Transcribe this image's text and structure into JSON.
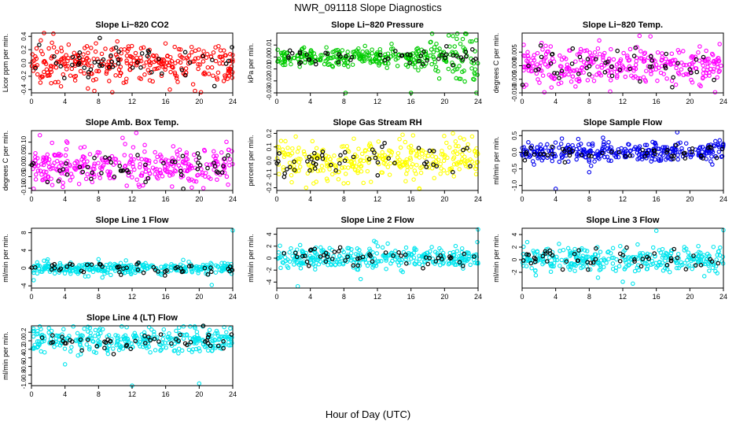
{
  "title": "NWR_091118  Slope Diagnostics",
  "xlabel": "Hour of Day (UTC)",
  "colors": {
    "axis": "#000000",
    "black_points": "#000000"
  },
  "chart_data": [
    {
      "type": "scatter",
      "title": "Slope Li−820 CO2",
      "ylabel": "Licor ppm per min.",
      "color": "#ff0000",
      "xlim": [
        0,
        24
      ],
      "xticks": [
        0,
        4,
        8,
        12,
        16,
        20,
        24
      ],
      "ylim": [
        -0.45,
        0.45
      ],
      "yticks": [
        -0.4,
        -0.2,
        0.0,
        0.2,
        0.4
      ],
      "yticklabels": [
        "-0.4",
        "-0.2",
        "0.0",
        "0.2",
        "0.4"
      ],
      "spread": 0.14,
      "n": 320,
      "nb": 50,
      "outliers": [
        [
          1.5,
          0.45
        ],
        [
          7.5,
          -0.42
        ],
        [
          16.5,
          -0.4
        ],
        [
          19.5,
          -0.42
        ]
      ]
    },
    {
      "type": "scatter",
      "title": "Slope Li−820 Pressure",
      "ylabel": "kPa per min.",
      "color": "#00cc00",
      "xlim": [
        0,
        24
      ],
      "xticks": [
        0,
        4,
        8,
        12,
        16,
        20,
        24
      ],
      "ylim": [
        -0.03,
        0.02
      ],
      "yticks": [
        -0.03,
        -0.02,
        -0.01,
        0.0,
        0.01
      ],
      "yticklabels": [
        "-0.03",
        "-0.02",
        "-0.01",
        "0.00",
        "0.01"
      ],
      "spread": 0.004,
      "n": 320,
      "nb": 50,
      "growth": 0.009,
      "outliers": [
        [
          8.2,
          -0.03
        ],
        [
          16,
          -0.03
        ],
        [
          23.8,
          -0.03
        ],
        [
          20.5,
          0.018
        ]
      ]
    },
    {
      "type": "scatter",
      "title": "Slope Li−820 Temp.",
      "ylabel": "degrees C per min.",
      "color": "#ff00ff",
      "xlim": [
        0,
        24
      ],
      "xticks": [
        0,
        4,
        8,
        12,
        16,
        20,
        24
      ],
      "ylim": [
        -0.01,
        0.012
      ],
      "yticks": [
        -0.01,
        -0.005,
        0.0,
        0.005
      ],
      "yticklabels": [
        "-0.010",
        "-0.005",
        "0.000",
        "0.005"
      ],
      "spread": 0.0035,
      "n": 320,
      "nb": 50,
      "outliers": [
        [
          14,
          0.011
        ],
        [
          10.5,
          -0.0095
        ],
        [
          3.5,
          -0.008
        ]
      ]
    },
    {
      "type": "scatter",
      "title": "Slope Amb. Box Temp.",
      "ylabel": "degrees C per min.",
      "color": "#ff00ff",
      "xlim": [
        0,
        24
      ],
      "xticks": [
        0,
        4,
        8,
        12,
        16,
        20,
        24
      ],
      "ylim": [
        -0.11,
        0.15
      ],
      "yticks": [
        -0.1,
        -0.05,
        0.0,
        0.05,
        0.1
      ],
      "yticklabels": [
        "-0.10",
        "-0.05",
        "0.00",
        "0.05",
        "0.10"
      ],
      "spread": 0.04,
      "n": 320,
      "nb": 50,
      "outliers": [
        [
          12.5,
          0.14
        ],
        [
          1,
          0.13
        ],
        [
          20.5,
          -0.1
        ]
      ]
    },
    {
      "type": "scatter",
      "title": "Slope Gas Stream RH",
      "ylabel": "percent per min.",
      "color": "#ffff00",
      "xlim": [
        0,
        24
      ],
      "xticks": [
        0,
        4,
        8,
        12,
        16,
        20,
        24
      ],
      "ylim": [
        -0.22,
        0.22
      ],
      "yticks": [
        -0.2,
        -0.1,
        0.0,
        0.1,
        0.2
      ],
      "yticklabels": [
        "-0.2",
        "-0.1",
        "0.0",
        "0.1",
        "0.2"
      ],
      "spread": 0.075,
      "n": 320,
      "nb": 50,
      "outliers": [
        [
          21,
          0.2
        ],
        [
          3.5,
          -0.2
        ],
        [
          15,
          0.19
        ]
      ]
    },
    {
      "type": "scatter",
      "title": "Slope Sample Flow",
      "ylabel": "ml/min per min.",
      "color": "#0000ee",
      "xlim": [
        0,
        24
      ],
      "xticks": [
        0,
        4,
        8,
        12,
        16,
        20,
        24
      ],
      "ylim": [
        -1.15,
        0.65
      ],
      "yticks": [
        -1.0,
        -0.5,
        0.0,
        0.5
      ],
      "yticklabels": [
        "-1.0",
        "-0.5",
        "0.0",
        "0.5"
      ],
      "spread": 0.16,
      "n": 320,
      "nb": 50,
      "outliers": [
        [
          4,
          -1.1
        ],
        [
          18.5,
          0.6
        ],
        [
          8,
          -0.6
        ]
      ]
    },
    {
      "type": "scatter",
      "title": "Slope Line 1 Flow",
      "ylabel": "ml/min per min.",
      "color": "#00e5ee",
      "xlim": [
        0,
        24
      ],
      "xticks": [
        0,
        4,
        8,
        12,
        16,
        20,
        24
      ],
      "ylim": [
        -4.5,
        9
      ],
      "yticks": [
        -4,
        0,
        4,
        8
      ],
      "yticklabels": [
        "-4",
        "0",
        "4",
        "8"
      ],
      "spread": 0.7,
      "n": 320,
      "nb": 50,
      "outliers": [
        [
          24,
          8.5
        ],
        [
          8,
          2
        ],
        [
          21.5,
          -3.8
        ]
      ]
    },
    {
      "type": "scatter",
      "title": "Slope Line 2 Flow",
      "ylabel": "ml/min per min.",
      "color": "#00e5ee",
      "xlim": [
        0,
        24
      ],
      "xticks": [
        0,
        4,
        8,
        12,
        16,
        20,
        24
      ],
      "ylim": [
        -5,
        5
      ],
      "yticks": [
        -4,
        -2,
        0,
        2,
        4
      ],
      "yticklabels": [
        "-4",
        "-2",
        "0",
        "2",
        "4"
      ],
      "spread": 0.9,
      "n": 320,
      "nb": 50,
      "outliers": [
        [
          24,
          4.8
        ],
        [
          2.5,
          -4.7
        ],
        [
          10,
          -3.5
        ]
      ]
    },
    {
      "type": "scatter",
      "title": "Slope Line 3 Flow",
      "ylabel": "ml/min per min.",
      "color": "#00e5ee",
      "xlim": [
        0,
        24
      ],
      "xticks": [
        0,
        4,
        8,
        12,
        16,
        20,
        24
      ],
      "ylim": [
        -4.5,
        5
      ],
      "yticks": [
        -2,
        0,
        2,
        4
      ],
      "yticklabels": [
        "-2",
        "0",
        "2",
        "4"
      ],
      "spread": 1.0,
      "n": 320,
      "nb": 50,
      "outliers": [
        [
          24,
          4.7
        ],
        [
          16,
          4.6
        ],
        [
          13.2,
          -3.8
        ],
        [
          12,
          -3.5
        ]
      ]
    },
    {
      "type": "scatter",
      "title": "Slope Line 4 (LT) Flow",
      "ylabel": "ml/min per min.",
      "color": "#00e5ee",
      "xlim": [
        0,
        24
      ],
      "xticks": [
        0,
        4,
        8,
        12,
        16,
        20,
        24
      ],
      "ylim": [
        -1.05,
        0.35
      ],
      "yticks": [
        -1.0,
        -0.8,
        -0.6,
        -0.4,
        -0.2,
        0.0,
        0.2
      ],
      "yticklabels": [
        "-1.0",
        "-0.8",
        "-0.6",
        "-0.4",
        "-0.2",
        "0.0",
        "0.2"
      ],
      "spread": 0.14,
      "n": 320,
      "nb": 50,
      "outliers": [
        [
          12,
          -1.05
        ],
        [
          20,
          -1.0
        ],
        [
          4,
          -0.55
        ],
        [
          19.5,
          0.3
        ]
      ]
    }
  ]
}
